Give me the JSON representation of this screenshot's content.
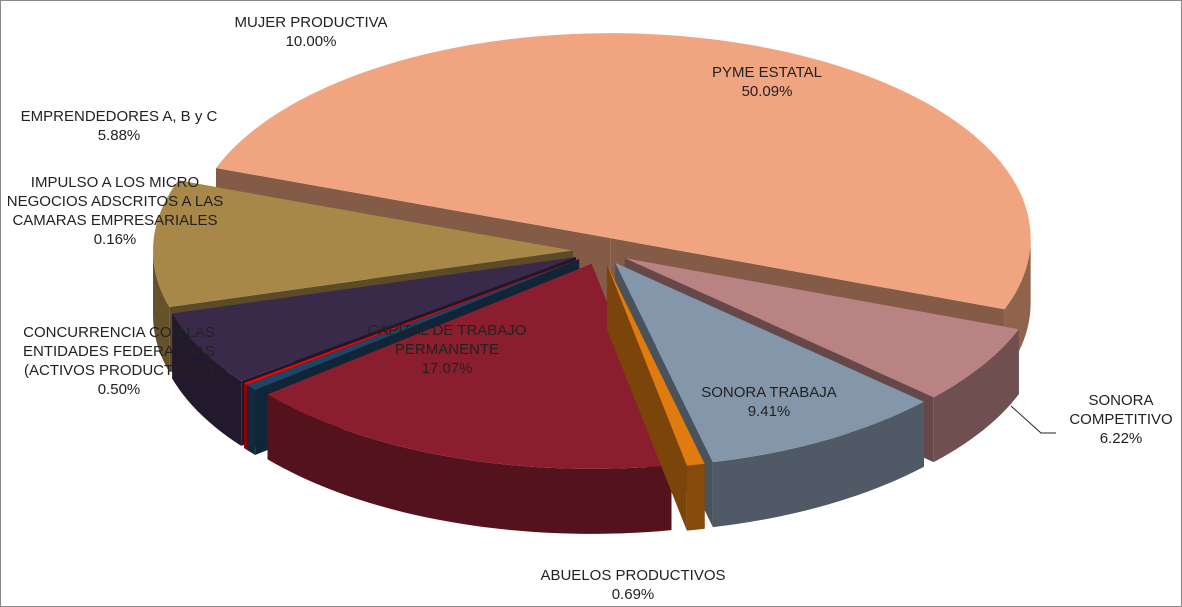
{
  "chart_data": {
    "type": "pie",
    "categories": [
      "PYME ESTATAL",
      "SONORA COMPETITIVO",
      "SONORA TRABAJA",
      "ABUELOS PRODUCTIVOS",
      "CAPITAL DE TRABAJO PERMANENTE",
      "CONCURRENCIA CON LAS ENTIDADES FEDERATIVAS (ACTIVOS PRODUCTIVOS)",
      "IMPULSO A LOS MICRO NEGOCIOS ADSCRITOS A LAS CAMARAS EMPRESARIALES",
      "EMPRENDEDORES A, B y C",
      "MUJER PRODUCTIVA"
    ],
    "values": [
      50.09,
      6.22,
      9.41,
      0.69,
      17.07,
      0.5,
      0.16,
      5.88,
      10.0
    ],
    "value_labels": [
      "50.09%",
      "6.22%",
      "9.41%",
      "0.69%",
      "17.07%",
      "0.50%",
      "0.16%",
      "5.88%",
      "10.00%"
    ],
    "colors": [
      "#f0a580",
      "#b98383",
      "#8496aa",
      "#e07b10",
      "#8b1e2e",
      "#1f4466",
      "#ff0000",
      "#3a2a4a",
      "#a88848"
    ]
  }
}
